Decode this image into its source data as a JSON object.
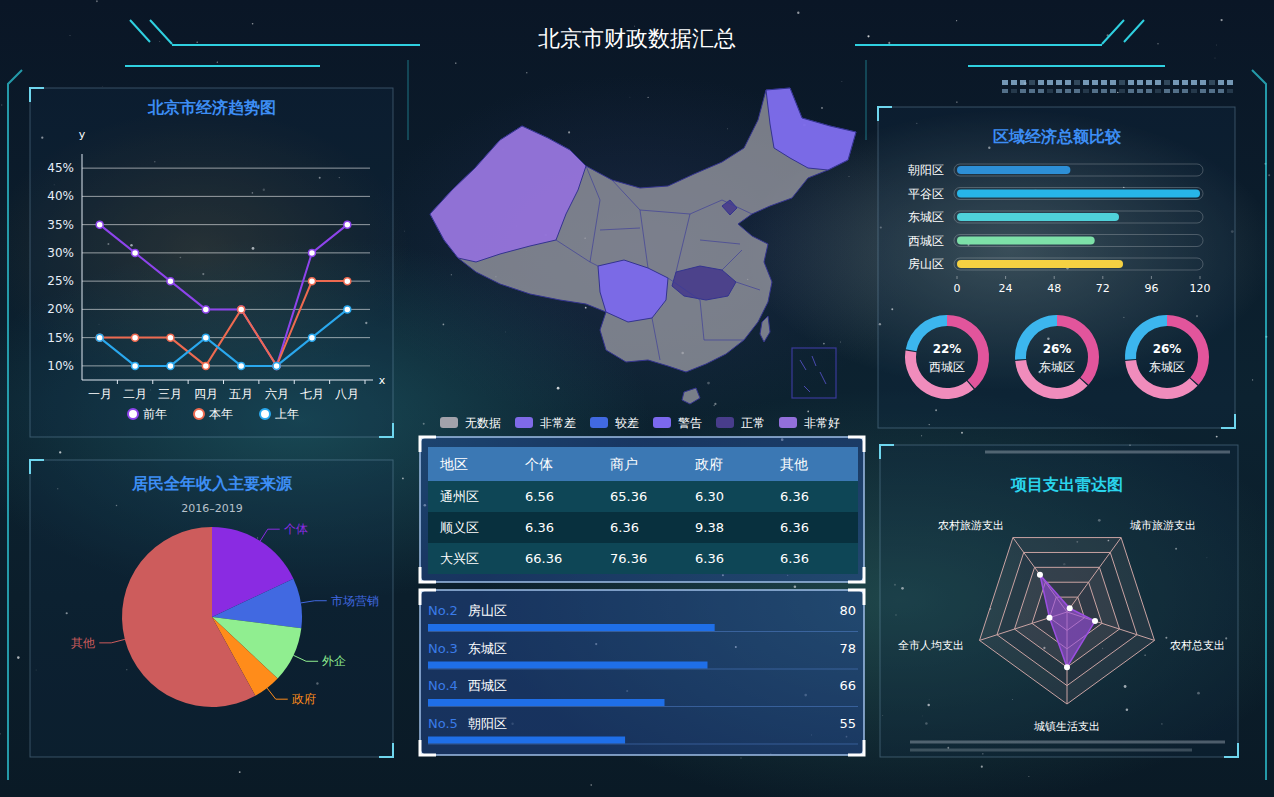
{
  "title": "北京市财政数据汇总",
  "chart_data": [
    {
      "type": "line",
      "title": "北京市经济趋势图",
      "x_label": "x",
      "y_label": "y",
      "categories": [
        "一月",
        "二月",
        "三月",
        "四月",
        "五月",
        "六月",
        "七月",
        "八月"
      ],
      "series": [
        {
          "name": "前年",
          "color": "#8e44ec",
          "values": [
            35,
            30,
            25,
            20,
            20,
            10,
            30,
            35
          ]
        },
        {
          "name": "本年",
          "color": "#ee6a50",
          "values": [
            15,
            15,
            15,
            10,
            20,
            10,
            25,
            25
          ]
        },
        {
          "name": "上年",
          "color": "#2aa8ee",
          "values": [
            15,
            10,
            10,
            15,
            10,
            10,
            15,
            20
          ]
        }
      ],
      "ylim": [
        7.5,
        47.5
      ],
      "yticks": [
        {
          "value": 10,
          "label": "10%"
        },
        {
          "value": 15,
          "label": "15%"
        },
        {
          "value": 20,
          "label": "20%"
        },
        {
          "value": 25,
          "label": "25%"
        },
        {
          "value": 30,
          "label": "30%"
        },
        {
          "value": 35,
          "label": "35%"
        },
        {
          "value": 40,
          "label": "40%"
        },
        {
          "value": 45,
          "label": "45%"
        }
      ],
      "grid": true,
      "legend": "bottom",
      "marker": "circle"
    },
    {
      "type": "pie",
      "title": "居民全年收入主要来源",
      "subtitle": "2016–2019",
      "categories": [
        "个体",
        "市场营销",
        "外企",
        "政府",
        "其他"
      ],
      "values": [
        18,
        9,
        10,
        5,
        58
      ],
      "colors": [
        "#8a2be2",
        "#4169e1",
        "#90ee90",
        "#ff8c1a",
        "#cd5c5c"
      ]
    },
    {
      "type": "bar",
      "orientation": "horizontal",
      "categories": [
        "房山区",
        "东城区",
        "西城区",
        "朝阳区"
      ],
      "ranks": [
        "No.2",
        "No.3",
        "No.4",
        "No.5"
      ],
      "values": [
        80,
        78,
        66,
        55
      ],
      "xlim": [
        0,
        120
      ],
      "data_labels": true,
      "tick_labels": false,
      "color": "#1f6fe8"
    },
    {
      "type": "bar",
      "orientation": "horizontal",
      "title": "区域经济总额比较",
      "categories": [
        "朝阳区",
        "平谷区",
        "东城区",
        "西城区",
        "房山区"
      ],
      "values": [
        56,
        120,
        80,
        68,
        82
      ],
      "colors": [
        "#2d8fd6",
        "#27b5e8",
        "#4fd1d9",
        "#7de0a8",
        "#f5d142"
      ],
      "xlim": [
        0,
        120
      ],
      "xticks": [
        0,
        24,
        48,
        72,
        96,
        120
      ]
    },
    {
      "type": "donut",
      "categories": [
        "西城区",
        "东城区",
        "东城区"
      ],
      "values": [
        22,
        26,
        26
      ],
      "value_labels": [
        "22%",
        "26%",
        "26%"
      ],
      "color": "#3cb6ee"
    },
    {
      "type": "radar",
      "title": "项目支出雷达图",
      "categories": [
        "农村旅游支出",
        "城市旅游支出",
        "农村总支出",
        "城镇生活支出",
        "全市人均支出"
      ],
      "values": [
        50,
        5,
        32,
        60,
        20
      ],
      "ylim": [
        0,
        100
      ],
      "yticks": [
        20,
        40,
        60,
        80,
        100
      ],
      "tick_labels": false,
      "color": "#9b4fe0"
    }
  ],
  "map": {
    "legend": [
      {
        "label": "无数据",
        "color": "#a2a2ab"
      },
      {
        "label": "非常差",
        "color": "#7f6ae8"
      },
      {
        "label": "较差",
        "color": "#4169e1"
      },
      {
        "label": "警告",
        "color": "#7b68ee"
      },
      {
        "label": "正常",
        "color": "#483d8b"
      },
      {
        "label": "非常好",
        "color": "#9370db"
      }
    ],
    "region_categories": [
      0,
      5,
      3,
      3,
      4,
      4,
      0,
      0
    ]
  },
  "table": {
    "header": [
      "地区",
      "个体",
      "商户",
      "政府",
      "其他"
    ],
    "rows": [
      [
        "通州区",
        "6.56",
        "65.36",
        "6.30",
        "6.36"
      ],
      [
        "顺义区",
        "6.36",
        "6.36",
        "9.38",
        "6.36"
      ],
      [
        "大兴区",
        "66.36",
        "76.36",
        "6.36",
        "6.36"
      ]
    ]
  }
}
